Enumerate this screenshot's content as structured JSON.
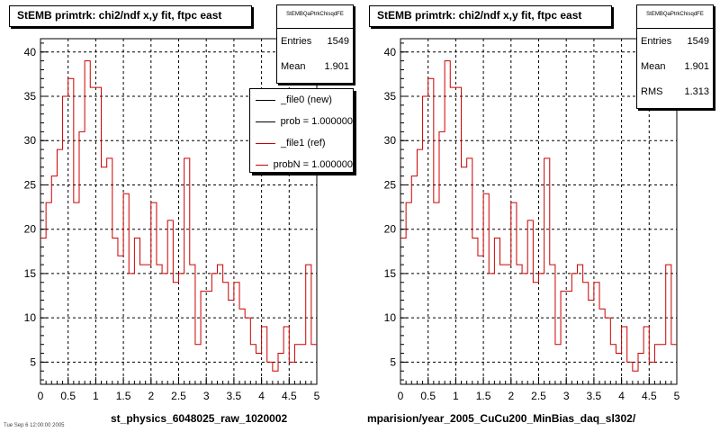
{
  "chart_data": [
    {
      "type": "histogram",
      "title": "StEMB primtrk: chi2/ndf x,y fit, ftpc east",
      "xlim": [
        0,
        5
      ],
      "ylim": [
        2.5,
        41.5
      ],
      "x_ticks": [
        "0",
        "0.5",
        "1",
        "1.5",
        "2",
        "2.5",
        "3",
        "3.5",
        "4",
        "4.5",
        "5"
      ],
      "y_ticks": [
        "5",
        "10",
        "15",
        "20",
        "25",
        "30",
        "35",
        "40"
      ],
      "grid": true,
      "bin_width": 0.1,
      "values": [
        19,
        23,
        26,
        29,
        35,
        37,
        23,
        31,
        39,
        36,
        36,
        27,
        28,
        19,
        17,
        24,
        15,
        19,
        16,
        16,
        23,
        16,
        15,
        21,
        14,
        15,
        28,
        16,
        7,
        13,
        13,
        15,
        16,
        14,
        12,
        14,
        11,
        10,
        7,
        6,
        9,
        5,
        4,
        6,
        9,
        5,
        7,
        7,
        16,
        7
      ],
      "series_color": "#cc0000",
      "xlabel": "st_physics_6048025_raw_1020002",
      "stats": {
        "name": "StEMBQaPtrkChisqdFE",
        "rows": [
          {
            "label": "Entries",
            "value": "1549"
          },
          {
            "label": "Mean",
            "value": "1.901"
          }
        ]
      },
      "legend": {
        "entries": [
          {
            "label": "_file0 (new)",
            "color": "#000000"
          },
          {
            "label": "prob = 1.000000",
            "color": "#000000"
          },
          {
            "label": "_file1 (ref)",
            "color": "#cc0000"
          },
          {
            "label": "probN = 1.000000",
            "color": "#cc0000"
          }
        ]
      }
    },
    {
      "type": "histogram",
      "title": "StEMB primtrk: chi2/ndf x,y fit, ftpc east",
      "xlim": [
        0,
        5
      ],
      "ylim": [
        2.5,
        41.5
      ],
      "x_ticks": [
        "0",
        "0.5",
        "1",
        "1.5",
        "2",
        "2.5",
        "3",
        "3.5",
        "4",
        "4.5",
        "5"
      ],
      "y_ticks": [
        "5",
        "10",
        "15",
        "20",
        "25",
        "30",
        "35",
        "40"
      ],
      "grid": true,
      "bin_width": 0.1,
      "values": [
        19,
        23,
        26,
        29,
        35,
        37,
        23,
        31,
        39,
        36,
        36,
        27,
        28,
        19,
        17,
        24,
        15,
        19,
        16,
        16,
        23,
        16,
        15,
        21,
        14,
        15,
        28,
        16,
        7,
        13,
        13,
        15,
        16,
        14,
        12,
        14,
        11,
        10,
        7,
        6,
        9,
        5,
        4,
        6,
        9,
        5,
        7,
        7,
        16,
        7
      ],
      "series_color": "#cc0000",
      "xlabel": "mparision/year_2005_CuCu200_MinBias_daq_sl302/",
      "stats": {
        "name": "StEMBQaPtrkChisqdFE",
        "rows": [
          {
            "label": "Entries",
            "value": "1549"
          },
          {
            "label": "Mean",
            "value": "1.901"
          },
          {
            "label": "RMS",
            "value": "1.313"
          }
        ]
      }
    }
  ],
  "footer_small": "Tue Sep 6 12:00:00 2005"
}
